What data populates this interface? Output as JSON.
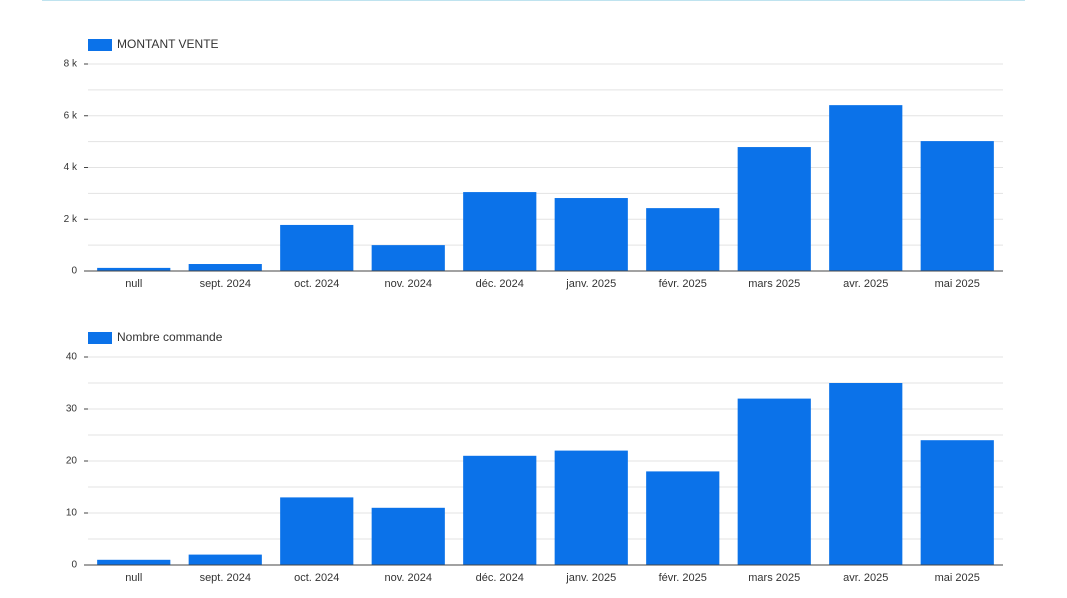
{
  "chart_data": [
    {
      "type": "bar",
      "categories": [
        "null",
        "sept. 2024",
        "oct. 2024",
        "nov. 2024",
        "déc. 2024",
        "janv. 2025",
        "févr. 2025",
        "mars 2025",
        "avr. 2025",
        "mai 2025"
      ],
      "series": [
        {
          "name": "MONTANT VENTE",
          "color": "#0b72e9",
          "values": [
            120,
            270,
            1780,
            1000,
            3050,
            2820,
            2430,
            4790,
            6410,
            5020
          ]
        }
      ],
      "ylim": [
        0,
        8000
      ],
      "yticks": [
        0,
        {
          "value": 2000,
          "label": "2 k"
        },
        {
          "value": 4000,
          "label": "4 k"
        },
        {
          "value": 6000,
          "label": "6 k"
        },
        {
          "value": 8000,
          "label": "8 k"
        }
      ],
      "minor_yticks": [
        1000,
        3000,
        5000,
        7000
      ],
      "grid": true
    },
    {
      "type": "bar",
      "categories": [
        "null",
        "sept. 2024",
        "oct. 2024",
        "nov. 2024",
        "déc. 2024",
        "janv. 2025",
        "févr. 2025",
        "mars 2025",
        "avr. 2025",
        "mai 2025"
      ],
      "series": [
        {
          "name": "Nombre commande",
          "color": "#0b72e9",
          "values": [
            1,
            2,
            13,
            11,
            21,
            22,
            18,
            32,
            35,
            24
          ]
        }
      ],
      "ylim": [
        0,
        40
      ],
      "yticks": [
        0,
        10,
        20,
        30,
        40
      ],
      "minor_yticks": [
        5,
        15,
        25,
        35
      ],
      "grid": true
    }
  ]
}
